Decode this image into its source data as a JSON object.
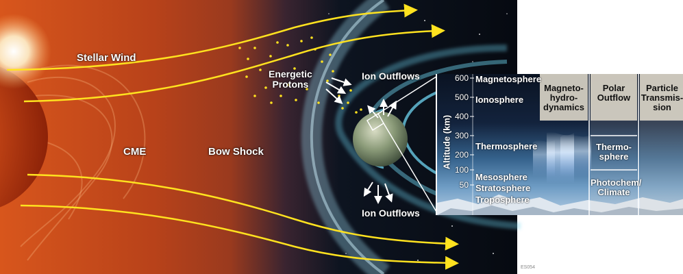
{
  "labels": {
    "stellar_wind": "Stellar Wind",
    "cme": "CME",
    "bow_shock": "Bow Shock",
    "energetic_protons": [
      "Energetic",
      "Protons"
    ],
    "ion_outflows_top": "Ion Outflows",
    "ion_outflows_bottom": "Ion Outflows"
  },
  "inset": {
    "axis_label": "Altitude (km)",
    "altitude_ticks": [
      "600",
      "500",
      "400",
      "300",
      "200",
      "100",
      "50"
    ],
    "layers": [
      "Magnetosphere",
      "Ionosphere",
      "Thermosphere",
      "Mesosphere",
      "Stratosphere",
      "Troposphere"
    ],
    "columns": [
      {
        "name": "magnetohydrodynamics",
        "lines": [
          "Magneto-",
          "hydro-",
          "dynamics"
        ]
      },
      {
        "name": "polar-outflow",
        "lines": [
          "Polar",
          "Outflow"
        ]
      },
      {
        "name": "particle-transmission",
        "lines": [
          "Particle",
          "Transmis-",
          "sion"
        ]
      }
    ],
    "polar_layers": [
      [
        "Thermo-",
        "sphere"
      ],
      [
        "Photochem/",
        "Climate"
      ]
    ]
  },
  "figure_id": "ES054",
  "colors": {
    "arrow": "#ffe21f",
    "sun": "#c23a10",
    "background": "#a83a1a",
    "magnetosphere": "#6fd4f0",
    "column_tint": "#d8d2c6"
  }
}
